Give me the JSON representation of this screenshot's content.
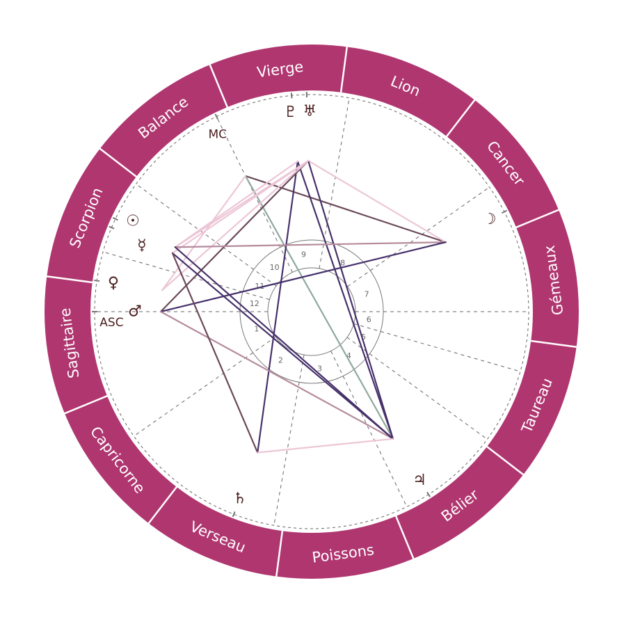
{
  "colors": {
    "ring": "#b03670",
    "glyph": "#4a1c1c",
    "dashed": "#666666",
    "aspect_purple": "#46306a",
    "aspect_darkmauve": "#6a4858",
    "aspect_mauve": "#b58a9c",
    "aspect_pink": "#ecc6d6",
    "aspect_green": "#8fa89e"
  },
  "signs": [
    {
      "name": "Bélier",
      "start": 0
    },
    {
      "name": "Taureau",
      "start": 30
    },
    {
      "name": "Gémeaux",
      "start": 60
    },
    {
      "name": "Cancer",
      "start": 90
    },
    {
      "name": "Lion",
      "start": 120
    },
    {
      "name": "Vierge",
      "start": 150
    },
    {
      "name": "Balance",
      "start": 180
    },
    {
      "name": "Scorpion",
      "start": 210
    },
    {
      "name": "Sagittaire",
      "start": 240
    },
    {
      "name": "Capricorne",
      "start": 270
    },
    {
      "name": "Verseau",
      "start": 300
    },
    {
      "name": "Poissons",
      "start": 330
    }
  ],
  "angles": {
    "asc": {
      "label": "ASC",
      "longitude": 247.6
    },
    "mc": {
      "label": "MC",
      "longitude": 183.6
    }
  },
  "houses": [
    {
      "number": "1",
      "cusp": 247.6
    },
    {
      "number": "2",
      "cusp": 282.6
    },
    {
      "number": "3",
      "cusp": 327.6
    },
    {
      "number": "4",
      "cusp": 3.6
    },
    {
      "number": "5",
      "cusp": 31.6
    },
    {
      "number": "6",
      "cusp": 51.6
    },
    {
      "number": "7",
      "cusp": 67.6
    },
    {
      "number": "8",
      "cusp": 102.6
    },
    {
      "number": "9",
      "cusp": 147.6
    },
    {
      "number": "10",
      "cusp": 183.6
    },
    {
      "number": "11",
      "cusp": 211.6
    },
    {
      "number": "12",
      "cusp": 231.6
    }
  ],
  "planets": [
    {
      "id": "sun",
      "glyph": "☉",
      "longitude": 222.3
    },
    {
      "id": "mercury",
      "glyph": "☿",
      "longitude": 224.8
    },
    {
      "id": "venus",
      "glyph": "♀",
      "longitude": 239.4
    },
    {
      "id": "mars",
      "glyph": "♂",
      "longitude": 247.6
    },
    {
      "id": "moon",
      "glyph": "☽",
      "longitude": 95.0
    },
    {
      "id": "jupiter",
      "glyph": "♃",
      "longitude": 10.2
    },
    {
      "id": "saturn",
      "glyph": "♄",
      "longitude": 316.6
    },
    {
      "id": "pluto",
      "glyph": "♇",
      "longitude": 162.9
    },
    {
      "id": "uranus",
      "glyph": "♅",
      "longitude": 158.9
    }
  ],
  "aspects": [
    {
      "from": "mc",
      "to": "moon",
      "color": "aspect_darkmauve"
    },
    {
      "from": "mc",
      "to": "jupiter",
      "color": "aspect_green"
    },
    {
      "from": "mc",
      "to": "venus",
      "color": "aspect_pink"
    },
    {
      "from": "uranus",
      "to": "moon",
      "color": "aspect_pink"
    },
    {
      "from": "uranus",
      "to": "jupiter",
      "color": "aspect_purple"
    },
    {
      "from": "pluto",
      "to": "jupiter",
      "color": "aspect_purple"
    },
    {
      "from": "pluto",
      "to": "saturn",
      "color": "aspect_purple"
    },
    {
      "from": "uranus",
      "to": "mars",
      "color": "aspect_darkmauve"
    },
    {
      "from": "sun",
      "to": "pluto",
      "color": "aspect_pink"
    },
    {
      "from": "sun",
      "to": "uranus",
      "color": "aspect_pink"
    },
    {
      "from": "mercury",
      "to": "uranus",
      "color": "aspect_pink"
    },
    {
      "from": "venus",
      "to": "uranus",
      "color": "aspect_pink"
    },
    {
      "from": "sun",
      "to": "moon",
      "color": "aspect_mauve"
    },
    {
      "from": "mars",
      "to": "moon",
      "color": "aspect_purple"
    },
    {
      "from": "mars",
      "to": "jupiter",
      "color": "aspect_mauve"
    },
    {
      "from": "mercury",
      "to": "jupiter",
      "color": "aspect_purple"
    },
    {
      "from": "sun",
      "to": "jupiter",
      "color": "aspect_purple"
    },
    {
      "from": "mercury",
      "to": "saturn",
      "color": "aspect_darkmauve"
    },
    {
      "from": "saturn",
      "to": "jupiter",
      "color": "aspect_pink"
    }
  ]
}
